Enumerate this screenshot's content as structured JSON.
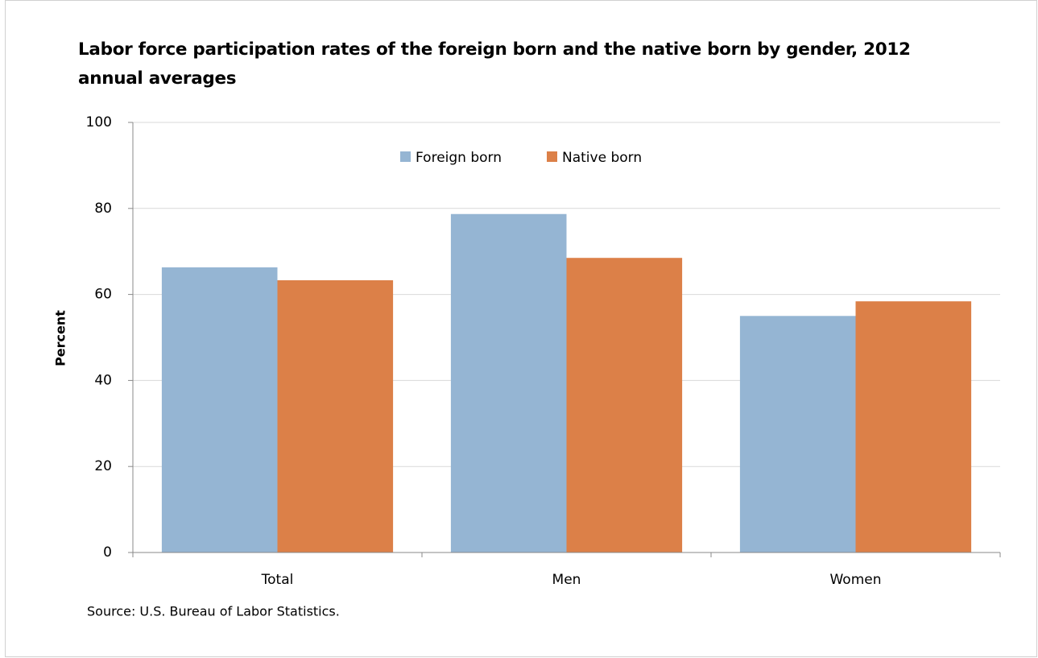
{
  "chart_data": {
    "type": "bar",
    "title": "Labor force participation rates of the foreign born and the native born by gender, 2012 annual averages",
    "y_label": "Percent",
    "source": "Source: U.S. Bureau of Labor Statistics.",
    "categories": [
      "Total",
      "Men",
      "Women"
    ],
    "series": [
      {
        "name": "Foreign born",
        "color": "#95b5d3",
        "values": [
          66.3,
          78.7,
          55.0
        ]
      },
      {
        "name": "Native born",
        "color": "#dc8048",
        "values": [
          63.3,
          68.5,
          58.4
        ]
      }
    ],
    "ylim": [
      0,
      100
    ],
    "yticks": [
      0,
      20,
      40,
      60,
      80,
      100
    ],
    "grid": true,
    "legend": "top"
  }
}
